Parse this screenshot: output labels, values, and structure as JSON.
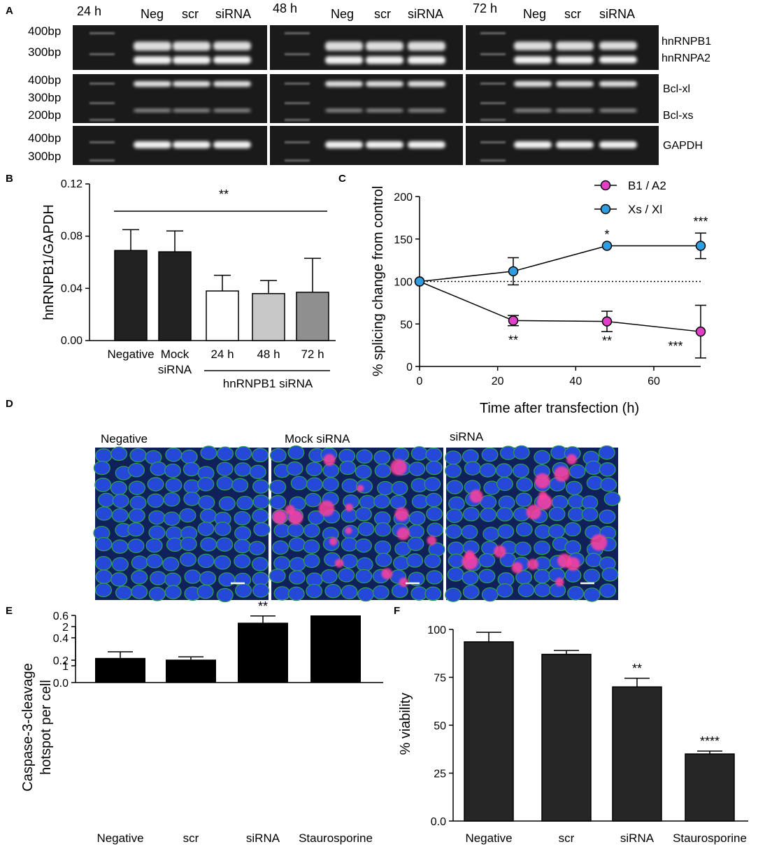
{
  "panel_labels": [
    "A",
    "B",
    "C",
    "D",
    "E",
    "F"
  ],
  "panelA": {
    "timepoints": [
      "24 h",
      "48 h",
      "72 h"
    ],
    "lanes": [
      "Neg",
      "scr",
      "siRNA"
    ],
    "row_ladders": [
      [
        "400bp",
        "300bp"
      ],
      [
        "400bp",
        "300bp",
        "200bp"
      ],
      [
        "400bp",
        "300bp"
      ]
    ],
    "genes": [
      "hnRNPB1",
      "hnRNPA2",
      "Bcl-xl",
      "Bcl-xs",
      "GAPDH"
    ]
  },
  "panelD": {
    "titles": [
      "Negative",
      "Mock siRNA",
      "siRNA"
    ]
  },
  "chart_data": [
    {
      "panel": "B",
      "type": "bar",
      "categories": [
        "Negative",
        "Mock siRNA",
        "24 h",
        "48 h",
        "72 h"
      ],
      "category_lines": [
        [
          "Negative"
        ],
        [
          "Mock",
          "siRNA"
        ],
        [
          "24 h"
        ],
        [
          "48 h"
        ],
        [
          "72 h"
        ]
      ],
      "values": [
        0.069,
        0.068,
        0.038,
        0.036,
        0.037
      ],
      "errors": [
        0.016,
        0.016,
        0.012,
        0.01,
        0.026
      ],
      "bar_colors": [
        "#222222",
        "#222222",
        "#ffffff",
        "#c8c8c8",
        "#8f8f8f"
      ],
      "ylabel": "hnRNPB1/GAPDH",
      "ylim": [
        0,
        0.12
      ],
      "yticks": [
        "0.00",
        "0.04",
        "0.08",
        "0.12"
      ],
      "group_label": "hnRNPB1 siRNA",
      "significance": "**"
    },
    {
      "panel": "C",
      "type": "line",
      "xlabel": "Time after transfection (h)",
      "ylabel": "% splicing change from control",
      "xlim": [
        0,
        72
      ],
      "ylim": [
        0,
        200
      ],
      "xticks": [
        "0",
        "20",
        "40",
        "60"
      ],
      "yticks": [
        "0",
        "50",
        "100",
        "150",
        "200"
      ],
      "reference_line": 100,
      "series": [
        {
          "name": "B1 / A2",
          "color": "#e040c8",
          "x": [
            0,
            24,
            48,
            72
          ],
          "y": [
            100,
            54,
            53,
            41
          ],
          "err": [
            0,
            6,
            12,
            31
          ],
          "stars": [
            "",
            "**",
            "**",
            "***"
          ]
        },
        {
          "name": "Xs / Xl",
          "color": "#2f9de0",
          "x": [
            0,
            24,
            48,
            72
          ],
          "y": [
            100,
            112,
            142,
            142
          ],
          "err": [
            0,
            16,
            0,
            15
          ],
          "stars": [
            "",
            "",
            "*",
            "***"
          ]
        }
      ]
    },
    {
      "panel": "E",
      "type": "bar",
      "categories": [
        "Negative",
        "scr",
        "siRNA",
        "Staurosporine"
      ],
      "values": [
        0.22,
        0.205,
        0.535,
        1.5
      ],
      "errors": [
        0.055,
        0.025,
        0.06,
        0.15
      ],
      "ylabel": "Caspase-3-cleavage hotspot per cell",
      "ylabel_lines": [
        "Caspase-3-cleavage",
        "hotspot per cell"
      ],
      "ylim": [
        0,
        2
      ],
      "axis_break": [
        0.6,
        1
      ],
      "yticks_lower": [
        "0.0",
        "0.2",
        "0.4",
        "0.6"
      ],
      "yticks_upper": [
        "1",
        "2"
      ],
      "stars": [
        "",
        "",
        "**",
        "****"
      ]
    },
    {
      "panel": "F",
      "type": "bar",
      "categories": [
        "Negative",
        "scr",
        "siRNA",
        "Staurosporine"
      ],
      "values": [
        93.5,
        87,
        70,
        35
      ],
      "errors": [
        5,
        2,
        4.5,
        1.5
      ],
      "ylabel": "% viability",
      "ylim": [
        0,
        100
      ],
      "yticks": [
        "0.0",
        "25",
        "50",
        "75",
        "100"
      ],
      "stars": [
        "",
        "",
        "**",
        "****"
      ]
    }
  ]
}
